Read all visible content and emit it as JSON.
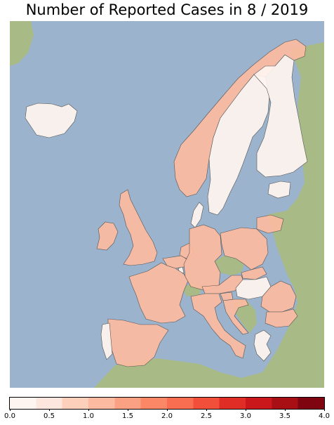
{
  "title": "Number of Reported Cases in 8 / 2019",
  "colors": {
    "sea": "#9bb3cc",
    "land_natural": "#a8ba86",
    "land_north": "#e3e5da",
    "border": "#555555"
  },
  "colorbar": {
    "min": 0.0,
    "max": 4.0,
    "ticks": [
      "0.0",
      "0.5",
      "1.0",
      "1.5",
      "2.0",
      "2.5",
      "3.0",
      "3.5",
      "4.0"
    ],
    "bins": [
      "#fff5f0",
      "#fde6dd",
      "#fcd0bb",
      "#fcbba1",
      "#fba183",
      "#fb8767",
      "#f96e51",
      "#f14f3a",
      "#e02e27",
      "#c9171c",
      "#a80f15",
      "#7f0610"
    ],
    "cmap": "Reds"
  },
  "regions": [
    {
      "name": "Iceland",
      "value": 0.2
    },
    {
      "name": "Norway",
      "value": 1.2
    },
    {
      "name": "Sweden",
      "value": 0.3
    },
    {
      "name": "Finland",
      "value": 0.3
    },
    {
      "name": "Estonia",
      "value": 0.2
    },
    {
      "name": "Denmark",
      "value": 0.3
    },
    {
      "name": "Ireland",
      "value": 1.2
    },
    {
      "name": "United Kingdom",
      "value": 1.2
    },
    {
      "name": "Netherlands",
      "value": 1.2
    },
    {
      "name": "Belgium",
      "value": 1.2
    },
    {
      "name": "Luxembourg",
      "value": 0.3
    },
    {
      "name": "France",
      "value": 1.2
    },
    {
      "name": "Germany",
      "value": 1.2
    },
    {
      "name": "Poland",
      "value": 1.2
    },
    {
      "name": "Lithuania",
      "value": 1.2
    },
    {
      "name": "Slovakia",
      "value": 1.2
    },
    {
      "name": "Austria",
      "value": 1.2
    },
    {
      "name": "Slovenia",
      "value": 1.2
    },
    {
      "name": "Hungary",
      "value": 0.3
    },
    {
      "name": "Croatia",
      "value": 1.2
    },
    {
      "name": "Romania",
      "value": 1.2
    },
    {
      "name": "Bulgaria",
      "value": 1.2
    },
    {
      "name": "Italy",
      "value": 1.2
    },
    {
      "name": "Spain",
      "value": 1.2
    },
    {
      "name": "Portugal",
      "value": 0.2
    },
    {
      "name": "Greece",
      "value": 0.3
    }
  ]
}
